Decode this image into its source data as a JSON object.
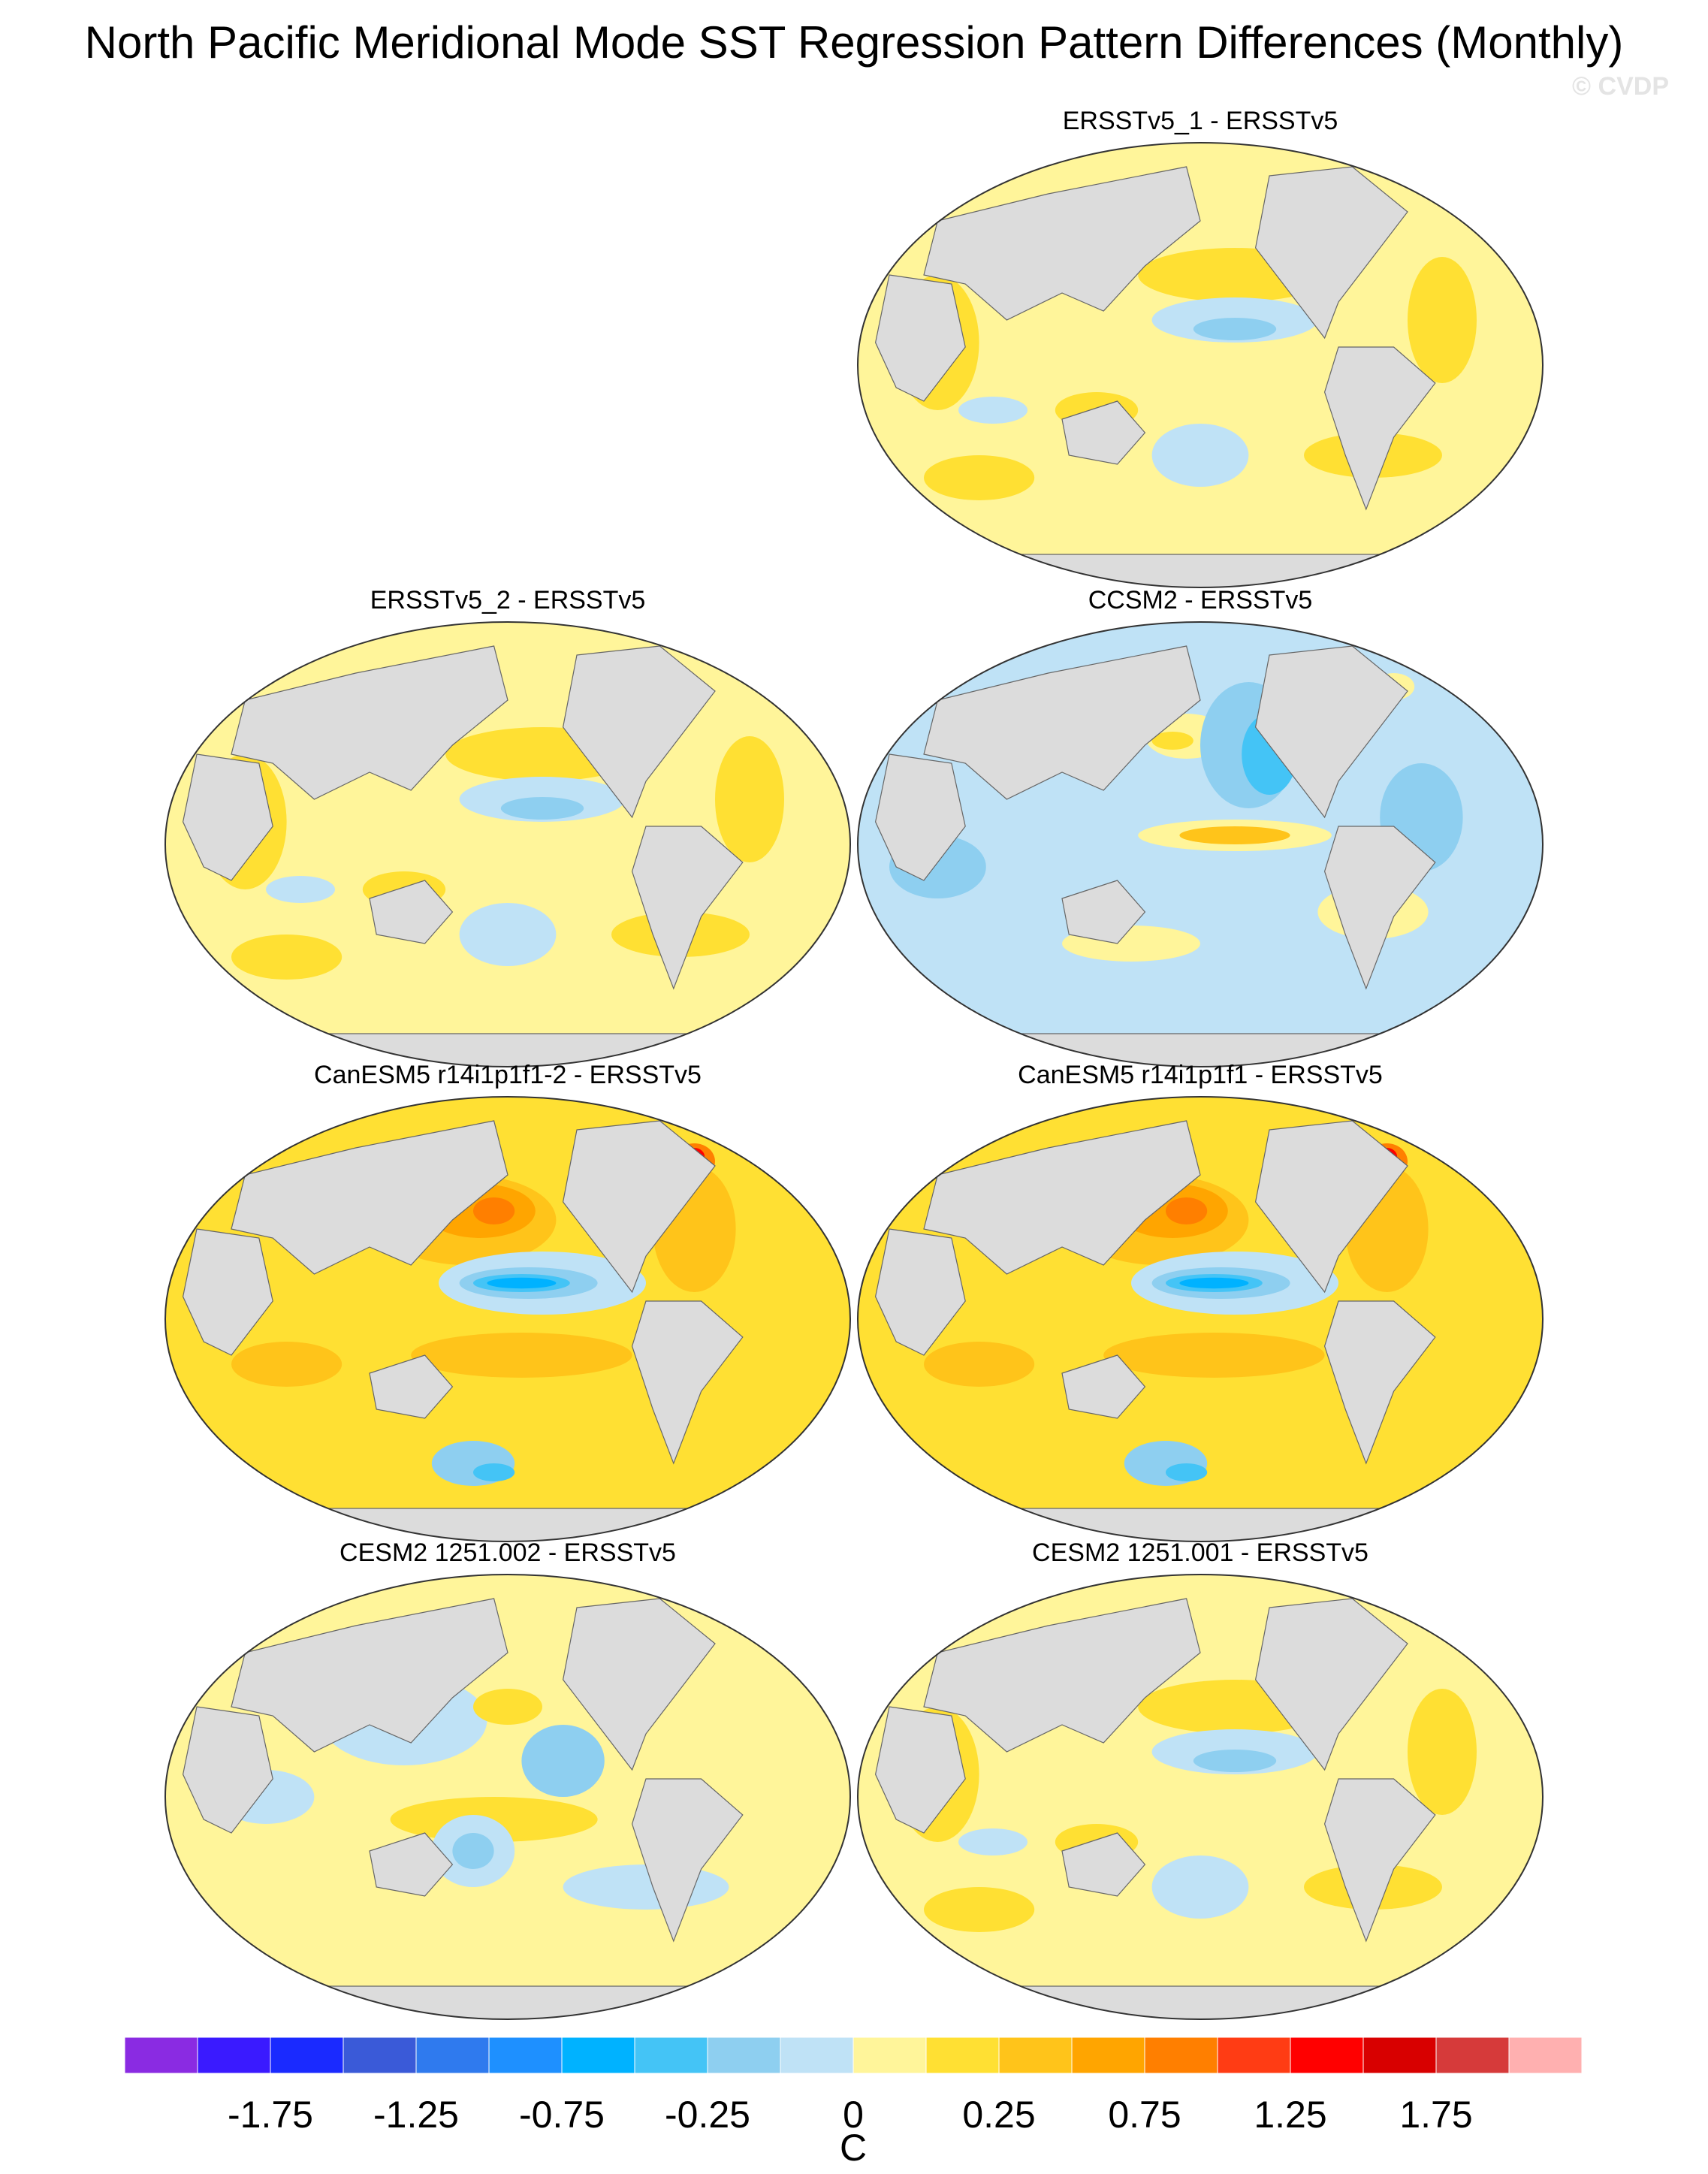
{
  "title": "North Pacific Meridional Mode SST Regression Pattern Differences (Monthly)",
  "watermark": "© CVDP",
  "panels": [
    {
      "title": "ERSSTv5_1 - ERSSTv5",
      "pattern": "weak-warm"
    },
    {
      "title": "ERSSTv5_2 - ERSSTv5",
      "pattern": "weak-warm"
    },
    {
      "title": "CCSM2 - ERSSTv5",
      "pattern": "cool"
    },
    {
      "title": "CanESM5 r14i1p1f1-2 - ERSSTv5",
      "pattern": "strong-warm"
    },
    {
      "title": "CanESM5 r14i1p1f1 - ERSSTv5",
      "pattern": "strong-warm"
    },
    {
      "title": "CESM2 1251.002 - ERSSTv5",
      "pattern": "mixed"
    },
    {
      "title": "CESM2 1251.001 - ERSSTv5",
      "pattern": "weak-warm"
    }
  ],
  "colorbar": {
    "colors": [
      "#8a2be2",
      "#3a1aff",
      "#1a2aff",
      "#3a5ad8",
      "#2f7aee",
      "#1e90ff",
      "#00b2ff",
      "#44c4f6",
      "#8ecff0",
      "#bfe2f6",
      "#fff59a",
      "#ffe033",
      "#ffc41a",
      "#ffa500",
      "#ff7f00",
      "#ff3c14",
      "#ff0000",
      "#d80000",
      "#d63a3a",
      "#ffb0b0"
    ],
    "labels": [
      "-1.75",
      "-1.25",
      "-0.75",
      "-0.25",
      "0",
      "0.25",
      "0.75",
      "1.25",
      "1.75"
    ],
    "unit": "C"
  },
  "palette": {
    "land": "#dcdcdc",
    "cool1": "#bfe2f6",
    "cool2": "#8ecff0",
    "cool3": "#44c4f6",
    "cool4": "#00b2ff",
    "zero": "#fff59a",
    "warm1": "#ffe033",
    "warm2": "#ffc41a",
    "warm3": "#ffa500",
    "warm4": "#ff7f00",
    "warm5": "#ff0000"
  }
}
